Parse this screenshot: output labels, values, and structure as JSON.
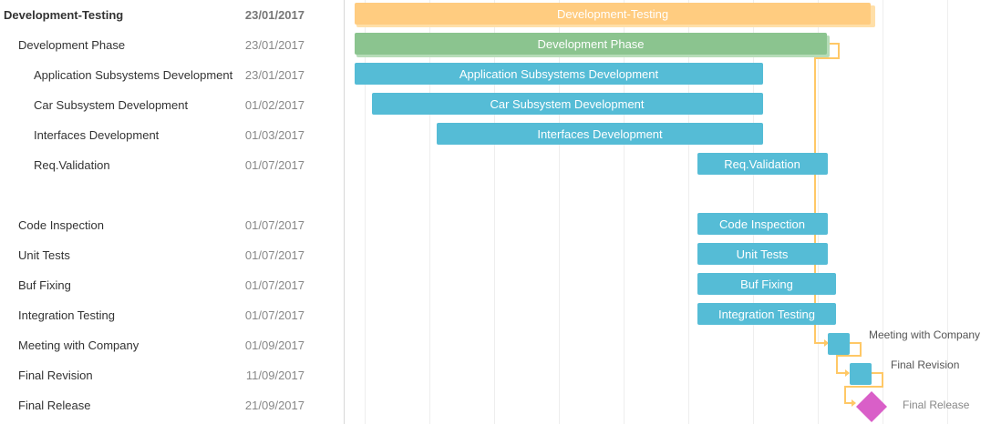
{
  "colors": {
    "project": "#ffcc80",
    "phase": "#8bc48f",
    "task": "#55bcd6",
    "milestone": "#d95fc8",
    "link": "#ffc866",
    "gridline": "#eeeeee"
  },
  "tasks": [
    {
      "name": "Development-Testing",
      "date": "23/01/2017",
      "level": 0,
      "type": "project",
      "bold": true
    },
    {
      "name": "Development Phase",
      "date": "23/01/2017",
      "level": 1,
      "type": "phase"
    },
    {
      "name": "Application Subsystems Development",
      "date": "23/01/2017",
      "level": 2,
      "type": "task"
    },
    {
      "name": "Car Subsystem Development",
      "date": "01/02/2017",
      "level": 2,
      "type": "task"
    },
    {
      "name": "Interfaces Development",
      "date": "01/03/2017",
      "level": 2,
      "type": "task"
    },
    {
      "name": "Req.Validation",
      "date": "01/07/2017",
      "level": 2,
      "type": "task"
    },
    {
      "name": "",
      "date": "",
      "level": 1,
      "type": "blank"
    },
    {
      "name": "Code Inspection",
      "date": "01/07/2017",
      "level": 1,
      "type": "task"
    },
    {
      "name": "Unit Tests",
      "date": "01/07/2017",
      "level": 1,
      "type": "task"
    },
    {
      "name": "Buf Fixing",
      "date": "01/07/2017",
      "level": 1,
      "type": "task"
    },
    {
      "name": "Integration Testing",
      "date": "01/07/2017",
      "level": 1,
      "type": "task"
    },
    {
      "name": "Meeting with Company",
      "date": "01/09/2017",
      "level": 1,
      "type": "small"
    },
    {
      "name": "Final Revision",
      "date": "11/09/2017",
      "level": 1,
      "type": "small"
    },
    {
      "name": "Final Release",
      "date": "21/09/2017",
      "level": 1,
      "type": "milestone"
    }
  ]
}
